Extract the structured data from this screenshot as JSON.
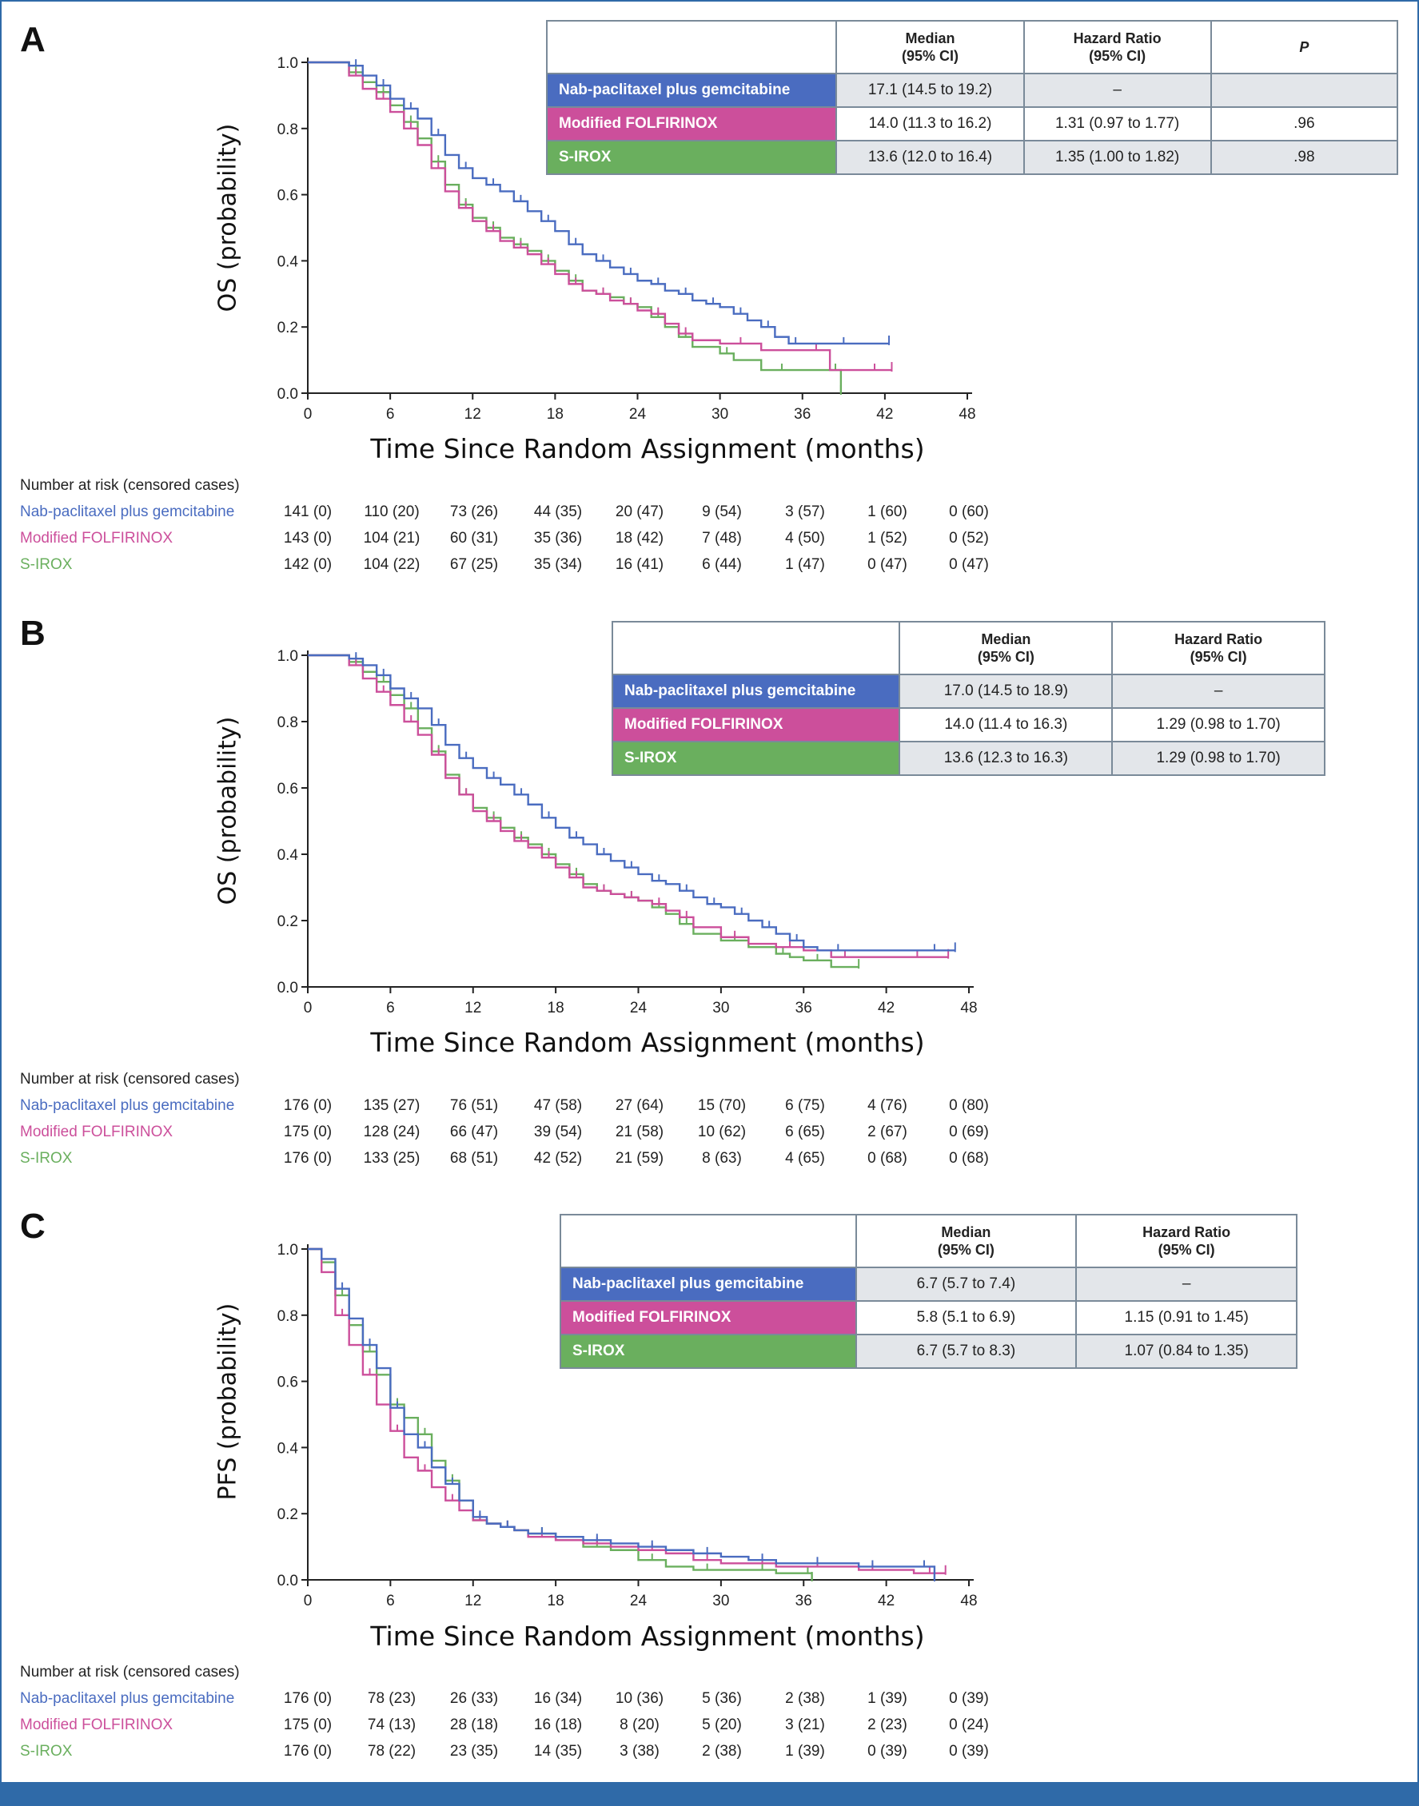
{
  "colors": {
    "nab": "#4a6cc0",
    "ffx": "#cc4f9b",
    "sirox": "#6aaf5e",
    "frame": "#2f6aa8",
    "grid_axis": "#222222"
  },
  "common": {
    "x_axis_label": "Time Since Random Assignment (months)",
    "x_ticks": [
      "0",
      "6",
      "12",
      "18",
      "24",
      "30",
      "36",
      "42",
      "48"
    ],
    "y_ticks": [
      "0.0",
      "0.2",
      "0.4",
      "0.6",
      "0.8",
      "1.0"
    ],
    "risk_title": "Number at risk (censored cases)",
    "arm_nab": "Nab-paclitaxel plus gemcitabine",
    "arm_ffx": "Modified FOLFIRINOX",
    "arm_sirox": "S-IROX",
    "col_median": "Median",
    "col_median_ci": "(95% CI)",
    "col_hr": "Hazard Ratio",
    "col_hr_ci": "(95% CI)",
    "col_p": "P"
  },
  "panels": {
    "A": {
      "letter": "A",
      "y_label": "OS (probability)",
      "table": {
        "nab": {
          "median": "17.1 (14.5 to 19.2)",
          "hr": "–",
          "p": ""
        },
        "ffx": {
          "median": "14.0 (11.3 to 16.2)",
          "hr": "1.31 (0.97 to 1.77)",
          "p": ".96"
        },
        "sirox": {
          "median": "13.6 (12.0 to 16.4)",
          "hr": "1.35 (1.00 to 1.82)",
          "p": ".98"
        }
      },
      "risk": {
        "nab": [
          "141 (0)",
          "110 (20)",
          "73 (26)",
          "44 (35)",
          "20 (47)",
          "9 (54)",
          "3 (57)",
          "1 (60)",
          "0 (60)"
        ],
        "ffx": [
          "143 (0)",
          "104 (21)",
          "60 (31)",
          "35 (36)",
          "18 (42)",
          "7 (48)",
          "4 (50)",
          "1 (52)",
          "0 (52)"
        ],
        "sirox": [
          "142 (0)",
          "104 (22)",
          "67 (25)",
          "35 (34)",
          "16 (41)",
          "6 (44)",
          "1 (47)",
          "0 (47)",
          "0 (47)"
        ]
      }
    },
    "B": {
      "letter": "B",
      "y_label": "OS (probability)",
      "table": {
        "nab": {
          "median": "17.0 (14.5 to 18.9)",
          "hr": "–"
        },
        "ffx": {
          "median": "14.0 (11.4 to 16.3)",
          "hr": "1.29 (0.98 to 1.70)"
        },
        "sirox": {
          "median": "13.6 (12.3 to 16.3)",
          "hr": "1.29 (0.98 to 1.70)"
        }
      },
      "risk": {
        "nab": [
          "176 (0)",
          "135 (27)",
          "76 (51)",
          "47 (58)",
          "27 (64)",
          "15 (70)",
          "6 (75)",
          "4 (76)",
          "0 (80)"
        ],
        "ffx": [
          "175 (0)",
          "128 (24)",
          "66 (47)",
          "39 (54)",
          "21 (58)",
          "10 (62)",
          "6 (65)",
          "2 (67)",
          "0 (69)"
        ],
        "sirox": [
          "176 (0)",
          "133 (25)",
          "68 (51)",
          "42 (52)",
          "21 (59)",
          "8 (63)",
          "4 (65)",
          "0 (68)",
          "0 (68)"
        ]
      }
    },
    "C": {
      "letter": "C",
      "y_label": "PFS (probability)",
      "table": {
        "nab": {
          "median": "6.7 (5.7 to 7.4)",
          "hr": "–"
        },
        "ffx": {
          "median": "5.8 (5.1 to 6.9)",
          "hr": "1.15 (0.91 to 1.45)"
        },
        "sirox": {
          "median": "6.7 (5.7 to 8.3)",
          "hr": "1.07 (0.84 to 1.35)"
        }
      },
      "risk": {
        "nab": [
          "176 (0)",
          "78 (23)",
          "26 (33)",
          "16 (34)",
          "10 (36)",
          "5 (36)",
          "2 (38)",
          "1 (39)",
          "0 (39)"
        ],
        "ffx": [
          "175 (0)",
          "74 (13)",
          "28 (18)",
          "16 (18)",
          "8 (20)",
          "5 (20)",
          "3 (21)",
          "2 (23)",
          "0 (24)"
        ],
        "sirox": [
          "176 (0)",
          "78 (22)",
          "23 (35)",
          "14 (35)",
          "3 (38)",
          "2 (38)",
          "1 (39)",
          "0 (39)",
          "0 (39)"
        ]
      }
    }
  },
  "chart_data": [
    {
      "type": "line",
      "panel": "A",
      "xlabel": "Time Since Random Assignment (months)",
      "ylabel": "OS (probability)",
      "xlim": [
        0,
        48
      ],
      "ylim": [
        0,
        1
      ],
      "series": [
        {
          "name": "Nab-paclitaxel plus gemcitabine",
          "x": [
            0,
            2,
            3,
            4,
            5,
            6,
            7,
            8,
            9,
            10,
            11,
            12,
            13,
            14,
            15,
            16,
            17,
            18,
            19,
            20,
            21,
            22,
            23,
            24,
            25,
            26,
            27,
            28,
            29,
            30,
            31,
            32,
            33,
            34,
            35,
            36,
            38,
            40,
            42.3
          ],
          "y": [
            1.0,
            1.0,
            0.99,
            0.96,
            0.93,
            0.89,
            0.86,
            0.83,
            0.78,
            0.72,
            0.68,
            0.65,
            0.63,
            0.61,
            0.58,
            0.55,
            0.52,
            0.49,
            0.45,
            0.42,
            0.4,
            0.38,
            0.36,
            0.34,
            0.33,
            0.31,
            0.3,
            0.28,
            0.27,
            0.26,
            0.24,
            0.22,
            0.2,
            0.17,
            0.15,
            0.15,
            0.15,
            0.15,
            0.15
          ]
        },
        {
          "name": "Modified FOLFIRINOX",
          "x": [
            0,
            2,
            3,
            4,
            5,
            6,
            7,
            8,
            9,
            10,
            11,
            12,
            13,
            14,
            15,
            16,
            17,
            18,
            19,
            20,
            21,
            22,
            23,
            24,
            25,
            26,
            27,
            28,
            30,
            33,
            36,
            38,
            40,
            42.5
          ],
          "y": [
            1.0,
            1.0,
            0.96,
            0.92,
            0.89,
            0.85,
            0.8,
            0.75,
            0.68,
            0.61,
            0.56,
            0.52,
            0.49,
            0.46,
            0.44,
            0.42,
            0.39,
            0.36,
            0.33,
            0.31,
            0.3,
            0.28,
            0.27,
            0.25,
            0.24,
            0.21,
            0.18,
            0.16,
            0.15,
            0.13,
            0.13,
            0.07,
            0.07,
            0.07
          ]
        },
        {
          "name": "S-IROX",
          "x": [
            0,
            2,
            3,
            4,
            5,
            6,
            7,
            8,
            9,
            10,
            11,
            12,
            13,
            14,
            15,
            16,
            17,
            18,
            19,
            20,
            21,
            22,
            23,
            24,
            25,
            26,
            27,
            28,
            30,
            31,
            33,
            36,
            38,
            38.8
          ],
          "y": [
            1.0,
            1.0,
            0.97,
            0.94,
            0.91,
            0.87,
            0.82,
            0.77,
            0.7,
            0.63,
            0.57,
            0.53,
            0.5,
            0.47,
            0.45,
            0.43,
            0.4,
            0.37,
            0.34,
            0.31,
            0.3,
            0.29,
            0.27,
            0.26,
            0.23,
            0.2,
            0.17,
            0.14,
            0.12,
            0.1,
            0.07,
            0.07,
            0.07,
            0.0
          ]
        }
      ]
    },
    {
      "type": "line",
      "panel": "B",
      "xlabel": "Time Since Random Assignment (months)",
      "ylabel": "OS (probability)",
      "xlim": [
        0,
        48
      ],
      "ylim": [
        0,
        1
      ],
      "series": [
        {
          "name": "Nab-paclitaxel plus gemcitabine",
          "x": [
            0,
            2,
            3,
            4,
            5,
            6,
            7,
            8,
            9,
            10,
            11,
            12,
            13,
            14,
            15,
            16,
            17,
            18,
            19,
            20,
            21,
            22,
            23,
            24,
            25,
            26,
            27,
            28,
            29,
            30,
            31,
            32,
            33,
            34,
            35,
            36,
            37,
            40,
            44,
            47
          ],
          "y": [
            1.0,
            1.0,
            0.99,
            0.97,
            0.94,
            0.9,
            0.87,
            0.84,
            0.79,
            0.73,
            0.69,
            0.66,
            0.63,
            0.61,
            0.58,
            0.55,
            0.51,
            0.48,
            0.45,
            0.43,
            0.4,
            0.38,
            0.36,
            0.34,
            0.32,
            0.31,
            0.29,
            0.27,
            0.25,
            0.24,
            0.22,
            0.2,
            0.18,
            0.16,
            0.14,
            0.12,
            0.11,
            0.11,
            0.11,
            0.11
          ]
        },
        {
          "name": "Modified FOLFIRINOX",
          "x": [
            0,
            2,
            3,
            4,
            5,
            6,
            7,
            8,
            9,
            10,
            11,
            12,
            13,
            14,
            15,
            16,
            17,
            18,
            19,
            20,
            21,
            22,
            23,
            24,
            25,
            26,
            27,
            28,
            30,
            32,
            34,
            36,
            38,
            40,
            42,
            46.5
          ],
          "y": [
            1.0,
            1.0,
            0.97,
            0.93,
            0.89,
            0.85,
            0.8,
            0.76,
            0.7,
            0.63,
            0.58,
            0.53,
            0.5,
            0.47,
            0.44,
            0.42,
            0.39,
            0.36,
            0.33,
            0.3,
            0.29,
            0.28,
            0.27,
            0.26,
            0.25,
            0.23,
            0.21,
            0.18,
            0.15,
            0.13,
            0.12,
            0.11,
            0.09,
            0.09,
            0.09,
            0.09
          ]
        },
        {
          "name": "S-IROX",
          "x": [
            0,
            2,
            3,
            4,
            5,
            6,
            7,
            8,
            9,
            10,
            11,
            12,
            13,
            14,
            15,
            16,
            17,
            18,
            19,
            20,
            21,
            22,
            23,
            24,
            25,
            26,
            27,
            28,
            30,
            32,
            34,
            35,
            36,
            38,
            40
          ],
          "y": [
            1.0,
            1.0,
            0.98,
            0.95,
            0.92,
            0.88,
            0.84,
            0.78,
            0.71,
            0.64,
            0.58,
            0.54,
            0.51,
            0.48,
            0.45,
            0.43,
            0.4,
            0.37,
            0.34,
            0.31,
            0.29,
            0.28,
            0.27,
            0.26,
            0.24,
            0.22,
            0.19,
            0.16,
            0.14,
            0.12,
            0.1,
            0.09,
            0.08,
            0.06,
            0.06
          ]
        }
      ]
    },
    {
      "type": "line",
      "panel": "C",
      "xlabel": "Time Since Random Assignment (months)",
      "ylabel": "PFS (probability)",
      "xlim": [
        0,
        48
      ],
      "ylim": [
        0,
        1
      ],
      "series": [
        {
          "name": "Nab-paclitaxel plus gemcitabine",
          "x": [
            0,
            1,
            2,
            3,
            4,
            5,
            6,
            7,
            8,
            9,
            10,
            11,
            12,
            13,
            14,
            15,
            16,
            18,
            20,
            22,
            24,
            26,
            28,
            30,
            32,
            34,
            36,
            38,
            40,
            42,
            44,
            45.5
          ],
          "y": [
            1.0,
            0.97,
            0.88,
            0.79,
            0.71,
            0.64,
            0.52,
            0.44,
            0.4,
            0.34,
            0.29,
            0.24,
            0.19,
            0.17,
            0.16,
            0.15,
            0.14,
            0.13,
            0.12,
            0.11,
            0.1,
            0.09,
            0.08,
            0.07,
            0.06,
            0.05,
            0.05,
            0.05,
            0.04,
            0.04,
            0.04,
            0.0
          ]
        },
        {
          "name": "Modified FOLFIRINOX",
          "x": [
            0,
            1,
            2,
            3,
            4,
            5,
            6,
            7,
            8,
            9,
            10,
            11,
            12,
            13,
            14,
            15,
            16,
            18,
            20,
            22,
            24,
            26,
            28,
            30,
            32,
            34,
            36,
            38,
            40,
            42,
            44,
            46.3
          ],
          "y": [
            1.0,
            0.93,
            0.8,
            0.71,
            0.62,
            0.53,
            0.45,
            0.37,
            0.33,
            0.28,
            0.24,
            0.21,
            0.18,
            0.17,
            0.16,
            0.15,
            0.13,
            0.12,
            0.11,
            0.1,
            0.09,
            0.08,
            0.06,
            0.05,
            0.05,
            0.04,
            0.04,
            0.04,
            0.03,
            0.03,
            0.02,
            0.02
          ]
        },
        {
          "name": "S-IROX",
          "x": [
            0,
            1,
            2,
            3,
            4,
            5,
            6,
            7,
            8,
            9,
            10,
            11,
            12,
            13,
            14,
            15,
            16,
            18,
            20,
            22,
            24,
            26,
            28,
            30,
            32,
            34,
            36,
            36.6
          ],
          "y": [
            1.0,
            0.96,
            0.86,
            0.77,
            0.69,
            0.62,
            0.53,
            0.49,
            0.44,
            0.36,
            0.3,
            0.24,
            0.18,
            0.17,
            0.16,
            0.15,
            0.14,
            0.12,
            0.1,
            0.09,
            0.06,
            0.04,
            0.03,
            0.03,
            0.03,
            0.02,
            0.02,
            0.0
          ]
        }
      ]
    }
  ]
}
